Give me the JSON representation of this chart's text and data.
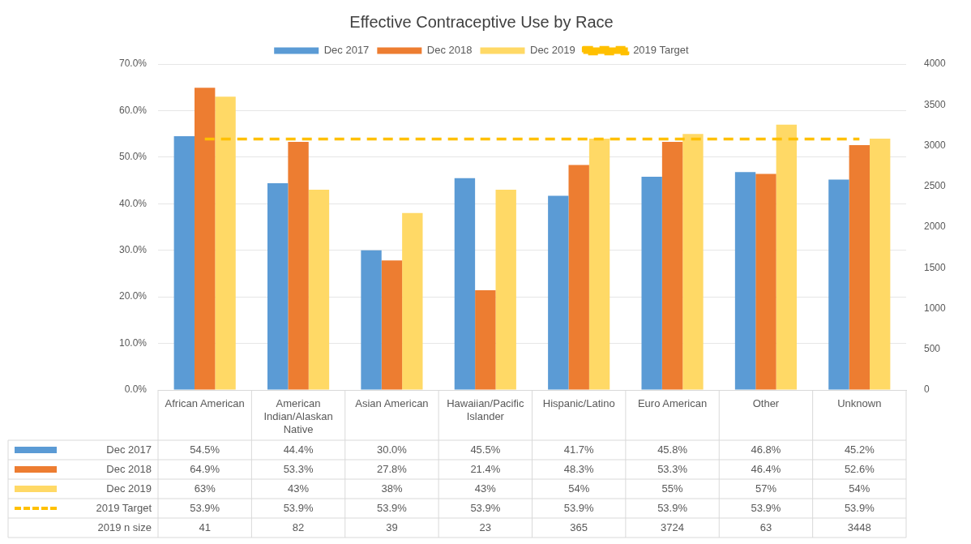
{
  "chart_data": {
    "type": "bar",
    "title": "Effective Contraceptive Use by Race",
    "categories": [
      "African American",
      "American Indian/Alaskan Native",
      "Asian American",
      "Hawaiian/Pacific Islander",
      "Hispanic/Latino",
      "Euro American",
      "Other",
      "Unknown"
    ],
    "series": [
      {
        "name": "Dec 2017",
        "color": "#5b9bd5",
        "values": [
          54.5,
          44.4,
          30.0,
          45.5,
          41.7,
          45.8,
          46.8,
          45.2
        ],
        "value_labels": [
          "54.5%",
          "44.4%",
          "30.0%",
          "45.5%",
          "41.7%",
          "45.8%",
          "46.8%",
          "45.2%"
        ]
      },
      {
        "name": "Dec 2018",
        "color": "#ed7d31",
        "values": [
          64.9,
          53.3,
          27.8,
          21.4,
          48.3,
          53.3,
          46.4,
          52.6
        ],
        "value_labels": [
          "64.9%",
          "53.3%",
          "27.8%",
          "21.4%",
          "48.3%",
          "53.3%",
          "46.4%",
          "52.6%"
        ]
      },
      {
        "name": "Dec 2019",
        "color": "#ffd966",
        "values": [
          63,
          43,
          38,
          43,
          54,
          55,
          57,
          54
        ],
        "value_labels": [
          "63%",
          "43%",
          "38%",
          "43%",
          "54%",
          "55%",
          "57%",
          "54%"
        ]
      },
      {
        "name": "2019 Target",
        "type": "line",
        "line_style": "dashed",
        "color": "#ffc000",
        "values": [
          53.9,
          53.9,
          53.9,
          53.9,
          53.9,
          53.9,
          53.9,
          53.9
        ],
        "value_labels": [
          "53.9%",
          "53.9%",
          "53.9%",
          "53.9%",
          "53.9%",
          "53.9%",
          "53.9%",
          "53.9%"
        ]
      }
    ],
    "annotations": [
      "2019 n size",
      "41",
      "82",
      "39",
      "23",
      "365",
      "3724",
      "63",
      "3448"
    ],
    "ylim": [
      0,
      70
    ],
    "yticks": [
      {
        "value": 0,
        "label": "0.0%"
      },
      {
        "value": 10,
        "label": "10.0%"
      },
      {
        "value": 20,
        "label": "20.0%"
      },
      {
        "value": 30,
        "label": "30.0%"
      },
      {
        "value": 40,
        "label": "40.0%"
      },
      {
        "value": 50,
        "label": "50.0%"
      },
      {
        "value": 60,
        "label": "60.0%"
      },
      {
        "value": 70,
        "label": "70.0%"
      }
    ],
    "y2lim": [
      0,
      4000
    ],
    "y2ticks": [
      0,
      500,
      1000,
      1500,
      2000,
      2500,
      3000,
      3500,
      4000
    ],
    "grid": "y",
    "legend": "top"
  }
}
